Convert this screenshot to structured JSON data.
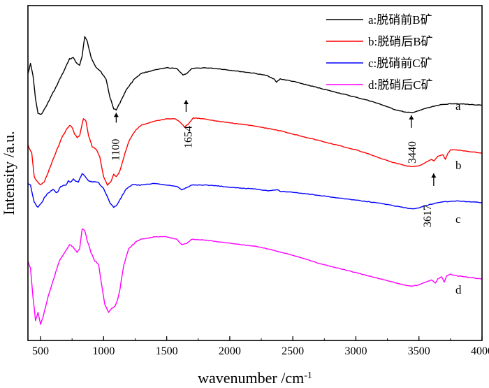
{
  "chart_data": {
    "type": "line",
    "title": "",
    "xlabel": "wavenumber /cm",
    "xlabel_superscript": "-1",
    "ylabel": "Intensity /a.u.",
    "xlim": [
      400,
      4000
    ],
    "x_ticks": [
      500,
      1000,
      1500,
      2000,
      2500,
      3000,
      3500,
      4000
    ],
    "x_tick_labels": [
      "500",
      "1000",
      "1500",
      "2000",
      "2500",
      "3000",
      "3500",
      "4000"
    ],
    "y_ticks_shown": false,
    "legend_position": "top-right",
    "series": [
      {
        "name": "a:脱硝前B矿",
        "label": "a",
        "color": "#000000",
        "points": [
          [
            400,
            1.4
          ],
          [
            420,
            1.52
          ],
          [
            440,
            1.38
          ],
          [
            460,
            1.08
          ],
          [
            480,
            0.9
          ],
          [
            500,
            0.88
          ],
          [
            520,
            0.92
          ],
          [
            550,
            1.0
          ],
          [
            580,
            1.1
          ],
          [
            620,
            1.22
          ],
          [
            660,
            1.35
          ],
          [
            700,
            1.48
          ],
          [
            730,
            1.58
          ],
          [
            760,
            1.6
          ],
          [
            790,
            1.52
          ],
          [
            810,
            1.5
          ],
          [
            830,
            1.62
          ],
          [
            850,
            1.86
          ],
          [
            870,
            1.8
          ],
          [
            900,
            1.6
          ],
          [
            940,
            1.48
          ],
          [
            980,
            1.42
          ],
          [
            1020,
            1.32
          ],
          [
            1050,
            1.1
          ],
          [
            1080,
            0.96
          ],
          [
            1100,
            0.94
          ],
          [
            1120,
            1.0
          ],
          [
            1150,
            1.1
          ],
          [
            1190,
            1.22
          ],
          [
            1250,
            1.34
          ],
          [
            1300,
            1.4
          ],
          [
            1400,
            1.44
          ],
          [
            1500,
            1.47
          ],
          [
            1580,
            1.46
          ],
          [
            1630,
            1.38
          ],
          [
            1660,
            1.4
          ],
          [
            1700,
            1.46
          ],
          [
            1800,
            1.47
          ],
          [
            1900,
            1.46
          ],
          [
            2000,
            1.44
          ],
          [
            2100,
            1.42
          ],
          [
            2200,
            1.4
          ],
          [
            2300,
            1.37
          ],
          [
            2350,
            1.33
          ],
          [
            2370,
            1.29
          ],
          [
            2400,
            1.33
          ],
          [
            2500,
            1.3
          ],
          [
            2600,
            1.26
          ],
          [
            2700,
            1.22
          ],
          [
            2800,
            1.18
          ],
          [
            2900,
            1.14
          ],
          [
            3000,
            1.1
          ],
          [
            3100,
            1.06
          ],
          [
            3200,
            1.01
          ],
          [
            3300,
            0.95
          ],
          [
            3400,
            0.91
          ],
          [
            3450,
            0.91
          ],
          [
            3500,
            0.93
          ],
          [
            3550,
            0.96
          ],
          [
            3600,
            0.98
          ],
          [
            3650,
            1.0
          ],
          [
            3700,
            1.01
          ],
          [
            3750,
            1.02
          ],
          [
            3800,
            1.02
          ],
          [
            3900,
            1.01
          ],
          [
            4000,
            1.0
          ]
        ]
      },
      {
        "name": "b:脱硝后B矿",
        "label": "b",
        "color": "#ff0000",
        "points": [
          [
            400,
            0.5
          ],
          [
            430,
            0.4
          ],
          [
            450,
            0.1
          ],
          [
            470,
            0.05
          ],
          [
            500,
            0.0
          ],
          [
            530,
            0.04
          ],
          [
            570,
            0.2
          ],
          [
            620,
            0.4
          ],
          [
            670,
            0.6
          ],
          [
            700,
            0.68
          ],
          [
            730,
            0.75
          ],
          [
            750,
            0.72
          ],
          [
            770,
            0.64
          ],
          [
            790,
            0.6
          ],
          [
            810,
            0.62
          ],
          [
            840,
            0.83
          ],
          [
            860,
            0.8
          ],
          [
            880,
            0.62
          ],
          [
            910,
            0.48
          ],
          [
            940,
            0.45
          ],
          [
            970,
            0.35
          ],
          [
            1000,
            0.1
          ],
          [
            1030,
            0.0
          ],
          [
            1060,
            0.05
          ],
          [
            1080,
            0.14
          ],
          [
            1100,
            0.1
          ],
          [
            1130,
            0.18
          ],
          [
            1170,
            0.4
          ],
          [
            1200,
            0.55
          ],
          [
            1250,
            0.68
          ],
          [
            1300,
            0.75
          ],
          [
            1400,
            0.8
          ],
          [
            1500,
            0.83
          ],
          [
            1570,
            0.83
          ],
          [
            1610,
            0.78
          ],
          [
            1640,
            0.73
          ],
          [
            1670,
            0.76
          ],
          [
            1710,
            0.84
          ],
          [
            1800,
            0.83
          ],
          [
            1900,
            0.8
          ],
          [
            2000,
            0.78
          ],
          [
            2100,
            0.76
          ],
          [
            2200,
            0.74
          ],
          [
            2300,
            0.71
          ],
          [
            2400,
            0.68
          ],
          [
            2500,
            0.64
          ],
          [
            2600,
            0.6
          ],
          [
            2700,
            0.56
          ],
          [
            2800,
            0.52
          ],
          [
            2900,
            0.48
          ],
          [
            3000,
            0.44
          ],
          [
            3100,
            0.39
          ],
          [
            3200,
            0.33
          ],
          [
            3300,
            0.28
          ],
          [
            3400,
            0.24
          ],
          [
            3450,
            0.23
          ],
          [
            3500,
            0.24
          ],
          [
            3550,
            0.28
          ],
          [
            3600,
            0.32
          ],
          [
            3620,
            0.3
          ],
          [
            3650,
            0.36
          ],
          [
            3690,
            0.38
          ],
          [
            3710,
            0.32
          ],
          [
            3730,
            0.4
          ],
          [
            3750,
            0.44
          ],
          [
            3800,
            0.44
          ],
          [
            3900,
            0.42
          ],
          [
            4000,
            0.4
          ]
        ]
      },
      {
        "name": "c:脱硝前C矿",
        "label": "c",
        "color": "#0000ff",
        "points": [
          [
            400,
            0.02
          ],
          [
            420,
            0.0
          ],
          [
            450,
            -0.22
          ],
          [
            480,
            -0.28
          ],
          [
            500,
            -0.24
          ],
          [
            530,
            -0.16
          ],
          [
            560,
            -0.1
          ],
          [
            600,
            -0.06
          ],
          [
            630,
            -0.1
          ],
          [
            660,
            -0.02
          ],
          [
            700,
            0.0
          ],
          [
            720,
            0.05
          ],
          [
            740,
            0.03
          ],
          [
            760,
            0.08
          ],
          [
            780,
            0.05
          ],
          [
            800,
            0.04
          ],
          [
            830,
            0.14
          ],
          [
            850,
            0.12
          ],
          [
            880,
            0.05
          ],
          [
            920,
            0.04
          ],
          [
            960,
            0.03
          ],
          [
            1000,
            -0.05
          ],
          [
            1050,
            -0.22
          ],
          [
            1080,
            -0.28
          ],
          [
            1100,
            -0.26
          ],
          [
            1130,
            -0.18
          ],
          [
            1180,
            -0.05
          ],
          [
            1230,
            0.0
          ],
          [
            1300,
            0.0
          ],
          [
            1400,
            0.02
          ],
          [
            1500,
            0.0
          ],
          [
            1580,
            -0.02
          ],
          [
            1620,
            -0.06
          ],
          [
            1650,
            -0.04
          ],
          [
            1700,
            0.0
          ],
          [
            1800,
            0.0
          ],
          [
            1900,
            -0.01
          ],
          [
            2000,
            -0.03
          ],
          [
            2100,
            -0.04
          ],
          [
            2200,
            -0.05
          ],
          [
            2300,
            -0.07
          ],
          [
            2380,
            -0.06
          ],
          [
            2400,
            -0.08
          ],
          [
            2500,
            -0.09
          ],
          [
            2600,
            -0.11
          ],
          [
            2700,
            -0.13
          ],
          [
            2800,
            -0.15
          ],
          [
            2900,
            -0.17
          ],
          [
            3000,
            -0.19
          ],
          [
            3100,
            -0.21
          ],
          [
            3200,
            -0.23
          ],
          [
            3300,
            -0.26
          ],
          [
            3400,
            -0.29
          ],
          [
            3450,
            -0.3
          ],
          [
            3500,
            -0.29
          ],
          [
            3550,
            -0.26
          ],
          [
            3600,
            -0.24
          ],
          [
            3650,
            -0.22
          ],
          [
            3700,
            -0.21
          ],
          [
            3800,
            -0.2
          ],
          [
            3900,
            -0.21
          ],
          [
            4000,
            -0.22
          ]
        ]
      },
      {
        "name": "d:脱硝后C矿",
        "label": "d",
        "color": "#ff00ff",
        "points": [
          [
            400,
            -0.95
          ],
          [
            420,
            -1.05
          ],
          [
            440,
            -1.4
          ],
          [
            460,
            -1.7
          ],
          [
            480,
            -1.6
          ],
          [
            500,
            -1.75
          ],
          [
            520,
            -1.65
          ],
          [
            560,
            -1.4
          ],
          [
            600,
            -1.2
          ],
          [
            650,
            -0.95
          ],
          [
            700,
            -0.82
          ],
          [
            730,
            -0.75
          ],
          [
            760,
            -0.78
          ],
          [
            790,
            -0.85
          ],
          [
            810,
            -0.8
          ],
          [
            830,
            -0.55
          ],
          [
            850,
            -0.57
          ],
          [
            870,
            -0.7
          ],
          [
            900,
            -0.85
          ],
          [
            930,
            -0.95
          ],
          [
            960,
            -1.0
          ],
          [
            990,
            -1.3
          ],
          [
            1010,
            -1.5
          ],
          [
            1040,
            -1.6
          ],
          [
            1060,
            -1.56
          ],
          [
            1090,
            -1.52
          ],
          [
            1110,
            -1.45
          ],
          [
            1130,
            -1.3
          ],
          [
            1160,
            -1.0
          ],
          [
            1200,
            -0.8
          ],
          [
            1250,
            -0.72
          ],
          [
            1300,
            -0.68
          ],
          [
            1400,
            -0.65
          ],
          [
            1500,
            -0.65
          ],
          [
            1580,
            -0.68
          ],
          [
            1620,
            -0.75
          ],
          [
            1660,
            -0.73
          ],
          [
            1700,
            -0.68
          ],
          [
            1800,
            -0.69
          ],
          [
            1900,
            -0.71
          ],
          [
            2000,
            -0.73
          ],
          [
            2100,
            -0.75
          ],
          [
            2200,
            -0.77
          ],
          [
            2300,
            -0.8
          ],
          [
            2400,
            -0.84
          ],
          [
            2500,
            -0.88
          ],
          [
            2600,
            -0.93
          ],
          [
            2700,
            -0.98
          ],
          [
            2800,
            -1.02
          ],
          [
            2900,
            -1.06
          ],
          [
            3000,
            -1.1
          ],
          [
            3100,
            -1.14
          ],
          [
            3200,
            -1.18
          ],
          [
            3300,
            -1.22
          ],
          [
            3400,
            -1.26
          ],
          [
            3450,
            -1.27
          ],
          [
            3500,
            -1.25
          ],
          [
            3550,
            -1.22
          ],
          [
            3600,
            -1.19
          ],
          [
            3630,
            -1.23
          ],
          [
            3650,
            -1.18
          ],
          [
            3680,
            -1.15
          ],
          [
            3700,
            -1.22
          ],
          [
            3720,
            -1.14
          ],
          [
            3750,
            -1.12
          ],
          [
            3800,
            -1.14
          ],
          [
            3900,
            -1.16
          ],
          [
            4000,
            -1.18
          ]
        ]
      }
    ],
    "annotations": [
      {
        "text": "1100",
        "x": 1100,
        "y": 0.94,
        "series": 0
      },
      {
        "text": "1654",
        "x": 1654,
        "y": 1.4,
        "series": 0
      },
      {
        "text": "3440",
        "x": 3440,
        "y": 0.91,
        "series": 0
      },
      {
        "text": "3617",
        "x": 3617,
        "y": 0.32,
        "series": 1
      }
    ]
  }
}
